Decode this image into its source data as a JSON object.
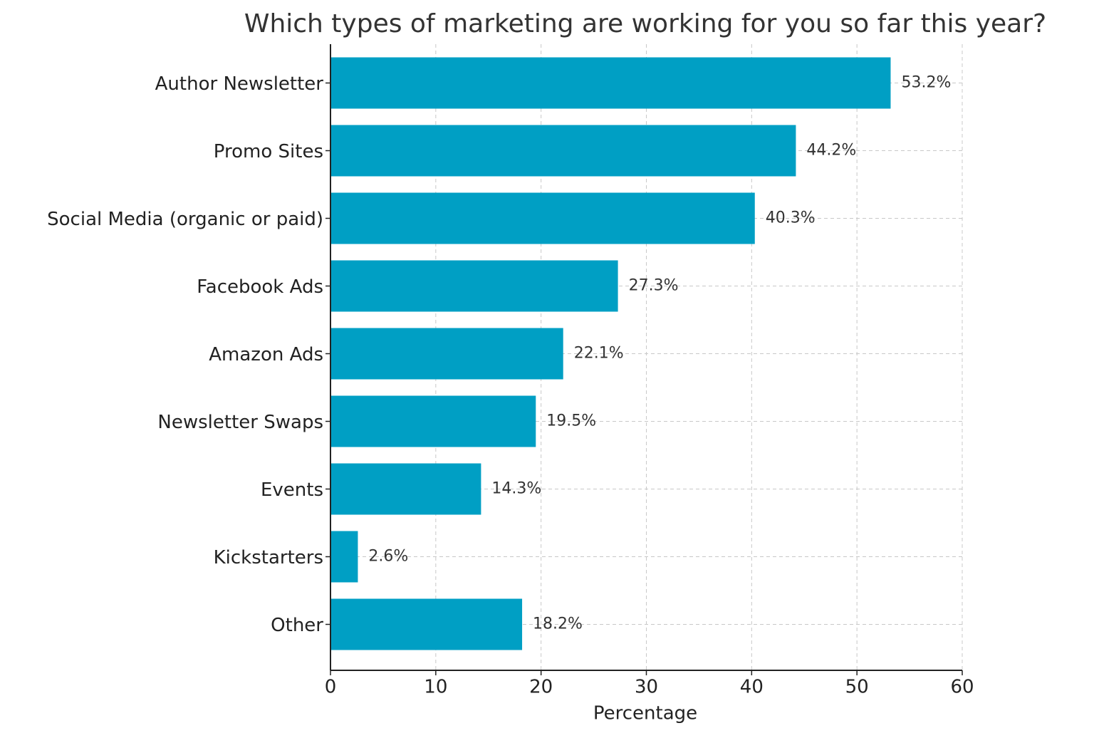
{
  "chart_data": {
    "type": "hbar",
    "title": "Which types of marketing are working for you so far this year?",
    "x_label": "Percentage",
    "categories": [
      "Author Newsletter",
      "Promo Sites",
      "Social Media (organic or paid)",
      "Facebook Ads",
      "Amazon Ads",
      "Newsletter Swaps",
      "Events",
      "Kickstarters",
      "Other"
    ],
    "values": [
      53.2,
      44.2,
      40.3,
      27.3,
      22.1,
      19.5,
      14.3,
      2.6,
      18.2
    ],
    "value_labels": [
      "53.2%",
      "44.2%",
      "40.3%",
      "27.3%",
      "22.1%",
      "19.5%",
      "14.3%",
      "2.6%",
      "18.2%"
    ],
    "color": "#009fc4",
    "xlim": [
      0,
      60
    ],
    "xticks": [
      0,
      10,
      20,
      30,
      40,
      50,
      60
    ],
    "grid": true
  }
}
